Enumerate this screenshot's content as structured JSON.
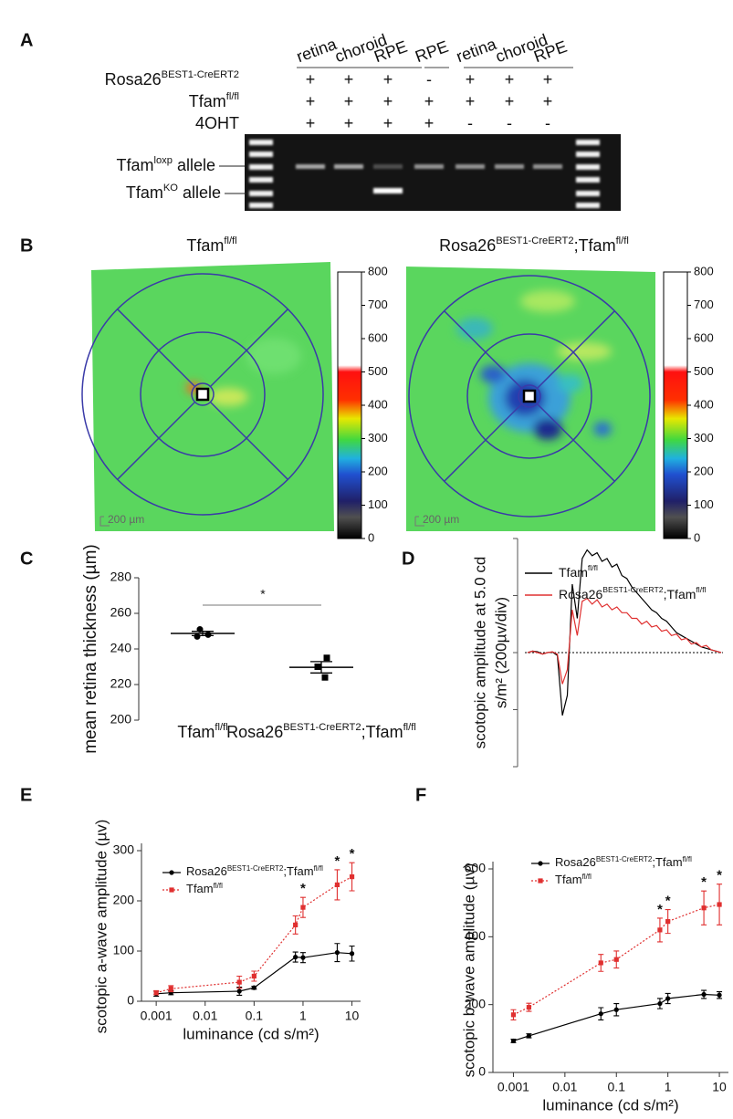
{
  "panel_labels": [
    "A",
    "B",
    "C",
    "D",
    "E",
    "F"
  ],
  "gel": {
    "lanes": [
      "retina",
      "choroid",
      "RPE",
      "RPE",
      "retina",
      "choroid",
      "RPE"
    ],
    "rows": [
      {
        "label": [
          {
            "t": "Rosa26"
          },
          {
            "sup": "BEST1-CreERT2"
          }
        ],
        "signs": [
          "+",
          "+",
          "+",
          "-",
          "+",
          "+",
          "+"
        ]
      },
      {
        "label": [
          {
            "t": "Tfam"
          },
          {
            "sup": "fl/fl"
          }
        ],
        "signs": [
          "+",
          "+",
          "+",
          "+",
          "+",
          "+",
          "+"
        ]
      },
      {
        "label": [
          {
            "t": "4OHT"
          }
        ],
        "signs": [
          "+",
          "+",
          "+",
          "+",
          "-",
          "-",
          "-"
        ]
      }
    ],
    "bands": [
      {
        "label": [
          {
            "t": "Tfam"
          },
          {
            "sup": "loxp"
          },
          {
            "t": " allele"
          }
        ]
      },
      {
        "label": [
          {
            "t": "Tfam"
          },
          {
            "sup": "KO"
          },
          {
            "t": " allele"
          }
        ]
      }
    ]
  },
  "maps": {
    "titles": [
      [
        {
          "t": "Tfam"
        },
        {
          "sup": "fl/fl"
        }
      ],
      [
        {
          "t": "Rosa26"
        },
        {
          "sup": "BEST1-CreERT2"
        },
        {
          "t": ";Tfam"
        },
        {
          "sup": "fl/fl"
        }
      ]
    ],
    "scale": "200 µm",
    "colorbar": {
      "range": [
        0,
        800
      ],
      "ticks": [
        0,
        100,
        200,
        300,
        400,
        500,
        600,
        700,
        800
      ]
    }
  },
  "chart_data": [
    {
      "type": "dot",
      "ylabel": "mean retina thickness (µm)",
      "categories": [
        [
          {
            "t": "Tfam"
          },
          {
            "sup": "fl/fl"
          }
        ],
        [
          {
            "t": "Rosa26"
          },
          {
            "sup": "BEST1-CreERT2"
          },
          {
            "t": ";Tfam"
          },
          {
            "sup": "fl/fl"
          }
        ]
      ],
      "markers": [
        "circle",
        "square"
      ],
      "color": "#000000",
      "points": [
        [
          251,
          248,
          247
        ],
        [
          235,
          230,
          224
        ]
      ],
      "means": [
        248.7,
        229.7
      ],
      "sem": [
        1.2,
        3.2
      ],
      "ylim": [
        200,
        280
      ],
      "yticks": [
        200,
        220,
        240,
        260,
        280
      ],
      "significance": "*"
    },
    {
      "type": "trace",
      "ylabel": [
        "scotopic amplitude at 5.0 cd",
        "s/m² (200µv/div)"
      ],
      "ylim": [
        -400,
        400
      ],
      "yticks": [
        -400,
        -200,
        0,
        200,
        400
      ],
      "tick_labels": false,
      "series": [
        {
          "name": [
            {
              "t": "Tfam"
            },
            {
              "sup": "fl/fl"
            }
          ],
          "color": "#000000",
          "values": [
            0,
            5,
            3,
            -5,
            0,
            2,
            -10,
            -220,
            -150,
            240,
            120,
            330,
            360,
            340,
            350,
            320,
            330,
            300,
            310,
            270,
            260,
            230,
            210,
            190,
            170,
            150,
            140,
            120,
            110,
            90,
            70,
            60,
            50,
            40,
            30,
            20,
            15,
            10,
            5,
            0
          ]
        },
        {
          "name": [
            {
              "t": "Rosa26"
            },
            {
              "sup": "BEST1-CreERT2"
            },
            {
              "t": ";Tfam"
            },
            {
              "sup": "fl/fl"
            }
          ],
          "color": "#e03030",
          "values": [
            0,
            5,
            0,
            -5,
            0,
            3,
            -5,
            -110,
            -60,
            150,
            60,
            180,
            190,
            170,
            185,
            160,
            170,
            150,
            160,
            140,
            140,
            120,
            120,
            100,
            110,
            90,
            95,
            75,
            80,
            60,
            65,
            45,
            50,
            30,
            35,
            20,
            25,
            10,
            5,
            0
          ]
        }
      ]
    },
    {
      "type": "line",
      "ylabel": "scotopic a-wave amplitude (µv)",
      "xlabel": "luminance  (cd s/m²)",
      "xscale": "log",
      "xlim": [
        0.0005,
        15
      ],
      "xticks": [
        0.001,
        0.01,
        0.1,
        1,
        10
      ],
      "ylim": [
        0,
        300
      ],
      "yticks": [
        0,
        100,
        200,
        300
      ],
      "x": [
        0.001,
        0.002,
        0.05,
        0.1,
        0.7,
        1,
        5,
        10
      ],
      "series": [
        {
          "name": [
            {
              "t": "Rosa26"
            },
            {
              "sup": "BEST1-CreERT2"
            },
            {
              "t": ";Tfam"
            },
            {
              "sup": "fl/fl"
            }
          ],
          "color": "#000000",
          "line_style": "solid",
          "marker": "circle",
          "values": [
            15,
            17,
            20,
            27,
            88,
            87,
            97,
            95
          ],
          "errors": [
            5,
            4,
            8,
            3,
            10,
            10,
            18,
            15
          ]
        },
        {
          "name": [
            {
              "t": "Tfam"
            },
            {
              "sup": "fl/fl"
            }
          ],
          "color": "#e03030",
          "line_style": "dotted",
          "marker": "square",
          "values": [
            17,
            25,
            38,
            50,
            152,
            187,
            232,
            248
          ],
          "errors": [
            4,
            6,
            12,
            10,
            18,
            20,
            30,
            28
          ]
        }
      ],
      "annotations": [
        {
          "text": "*",
          "x": 1
        },
        {
          "text": "*",
          "x": 5
        },
        {
          "text": "*",
          "x": 10
        }
      ]
    },
    {
      "type": "line",
      "ylabel": "scotopic b-wave amplitude (µv)",
      "xlabel": "luminance (cd s/m²)",
      "xscale": "log",
      "xlim": [
        0.0004,
        15
      ],
      "xticks": [
        0.001,
        0.01,
        0.1,
        1,
        10
      ],
      "ylim": [
        0,
        600
      ],
      "yticks": [
        0,
        200,
        400,
        600
      ],
      "x": [
        0.001,
        0.002,
        0.05,
        0.1,
        0.7,
        1,
        5,
        10
      ],
      "series": [
        {
          "name": [
            {
              "t": "Rosa26"
            },
            {
              "sup": "BEST1-CreERT2"
            },
            {
              "t": ";Tfam"
            },
            {
              "sup": "fl/fl"
            }
          ],
          "color": "#000000",
          "line_style": "solid",
          "marker": "circle",
          "values": [
            93,
            108,
            173,
            185,
            203,
            218,
            230,
            228
          ],
          "errors": [
            5,
            6,
            18,
            18,
            15,
            15,
            12,
            10
          ]
        },
        {
          "name": [
            {
              "t": "Tfam"
            },
            {
              "sup": "fl/fl"
            }
          ],
          "color": "#e03030",
          "line_style": "dotted",
          "marker": "square",
          "values": [
            170,
            192,
            323,
            333,
            420,
            445,
            485,
            495
          ],
          "errors": [
            15,
            12,
            25,
            25,
            35,
            35,
            50,
            60
          ]
        }
      ],
      "annotations": [
        {
          "text": "*",
          "x": 0.7
        },
        {
          "text": "*",
          "x": 1
        },
        {
          "text": "*",
          "x": 5
        },
        {
          "text": "*",
          "x": 10
        }
      ]
    }
  ]
}
